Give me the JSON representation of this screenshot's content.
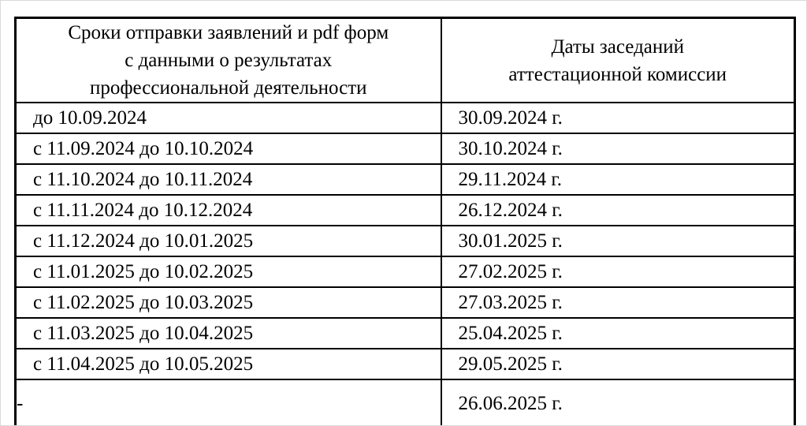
{
  "page": {
    "background_color": "#ffffff",
    "border_color": "#000000",
    "text_color": "#000000"
  },
  "table": {
    "headers": {
      "col1_full": "Сроки отправки заявлений и pdf форм с данными о результатах профессиональной деятельности",
      "col1_lines": [
        "Сроки отправки заявлений и pdf форм",
        "с данными о результатах",
        "профессиональной деятельности"
      ],
      "col2_full": "Даты заседаний аттестационной комиссии",
      "col2_lines": [
        "Даты заседаний",
        "аттестационной комиссии"
      ]
    },
    "rows": [
      {
        "deadline": "до 10.09.2024",
        "meeting_date": "30.09.2024 г."
      },
      {
        "deadline": "с 11.09.2024 до 10.10.2024",
        "meeting_date": "30.10.2024 г."
      },
      {
        "deadline": "с 11.10.2024 до 10.11.2024",
        "meeting_date": "29.11.2024 г."
      },
      {
        "deadline": "с 11.11.2024 до 10.12.2024",
        "meeting_date": "26.12.2024 г."
      },
      {
        "deadline": "с 11.12.2024 до 10.01.2025",
        "meeting_date": "30.01.2025 г."
      },
      {
        "deadline": "с 11.01.2025 до 10.02.2025",
        "meeting_date": "27.02.2025 г."
      },
      {
        "deadline": "с 11.02.2025 до 10.03.2025",
        "meeting_date": "27.03.2025 г."
      },
      {
        "deadline": "с 11.03.2025 до 10.04.2025",
        "meeting_date": "25.04.2025 г."
      },
      {
        "deadline": "с 11.04.2025 до 10.05.2025",
        "meeting_date": "29.05.2025 г."
      },
      {
        "deadline": "-",
        "meeting_date": "26.06.2025 г."
      }
    ]
  }
}
